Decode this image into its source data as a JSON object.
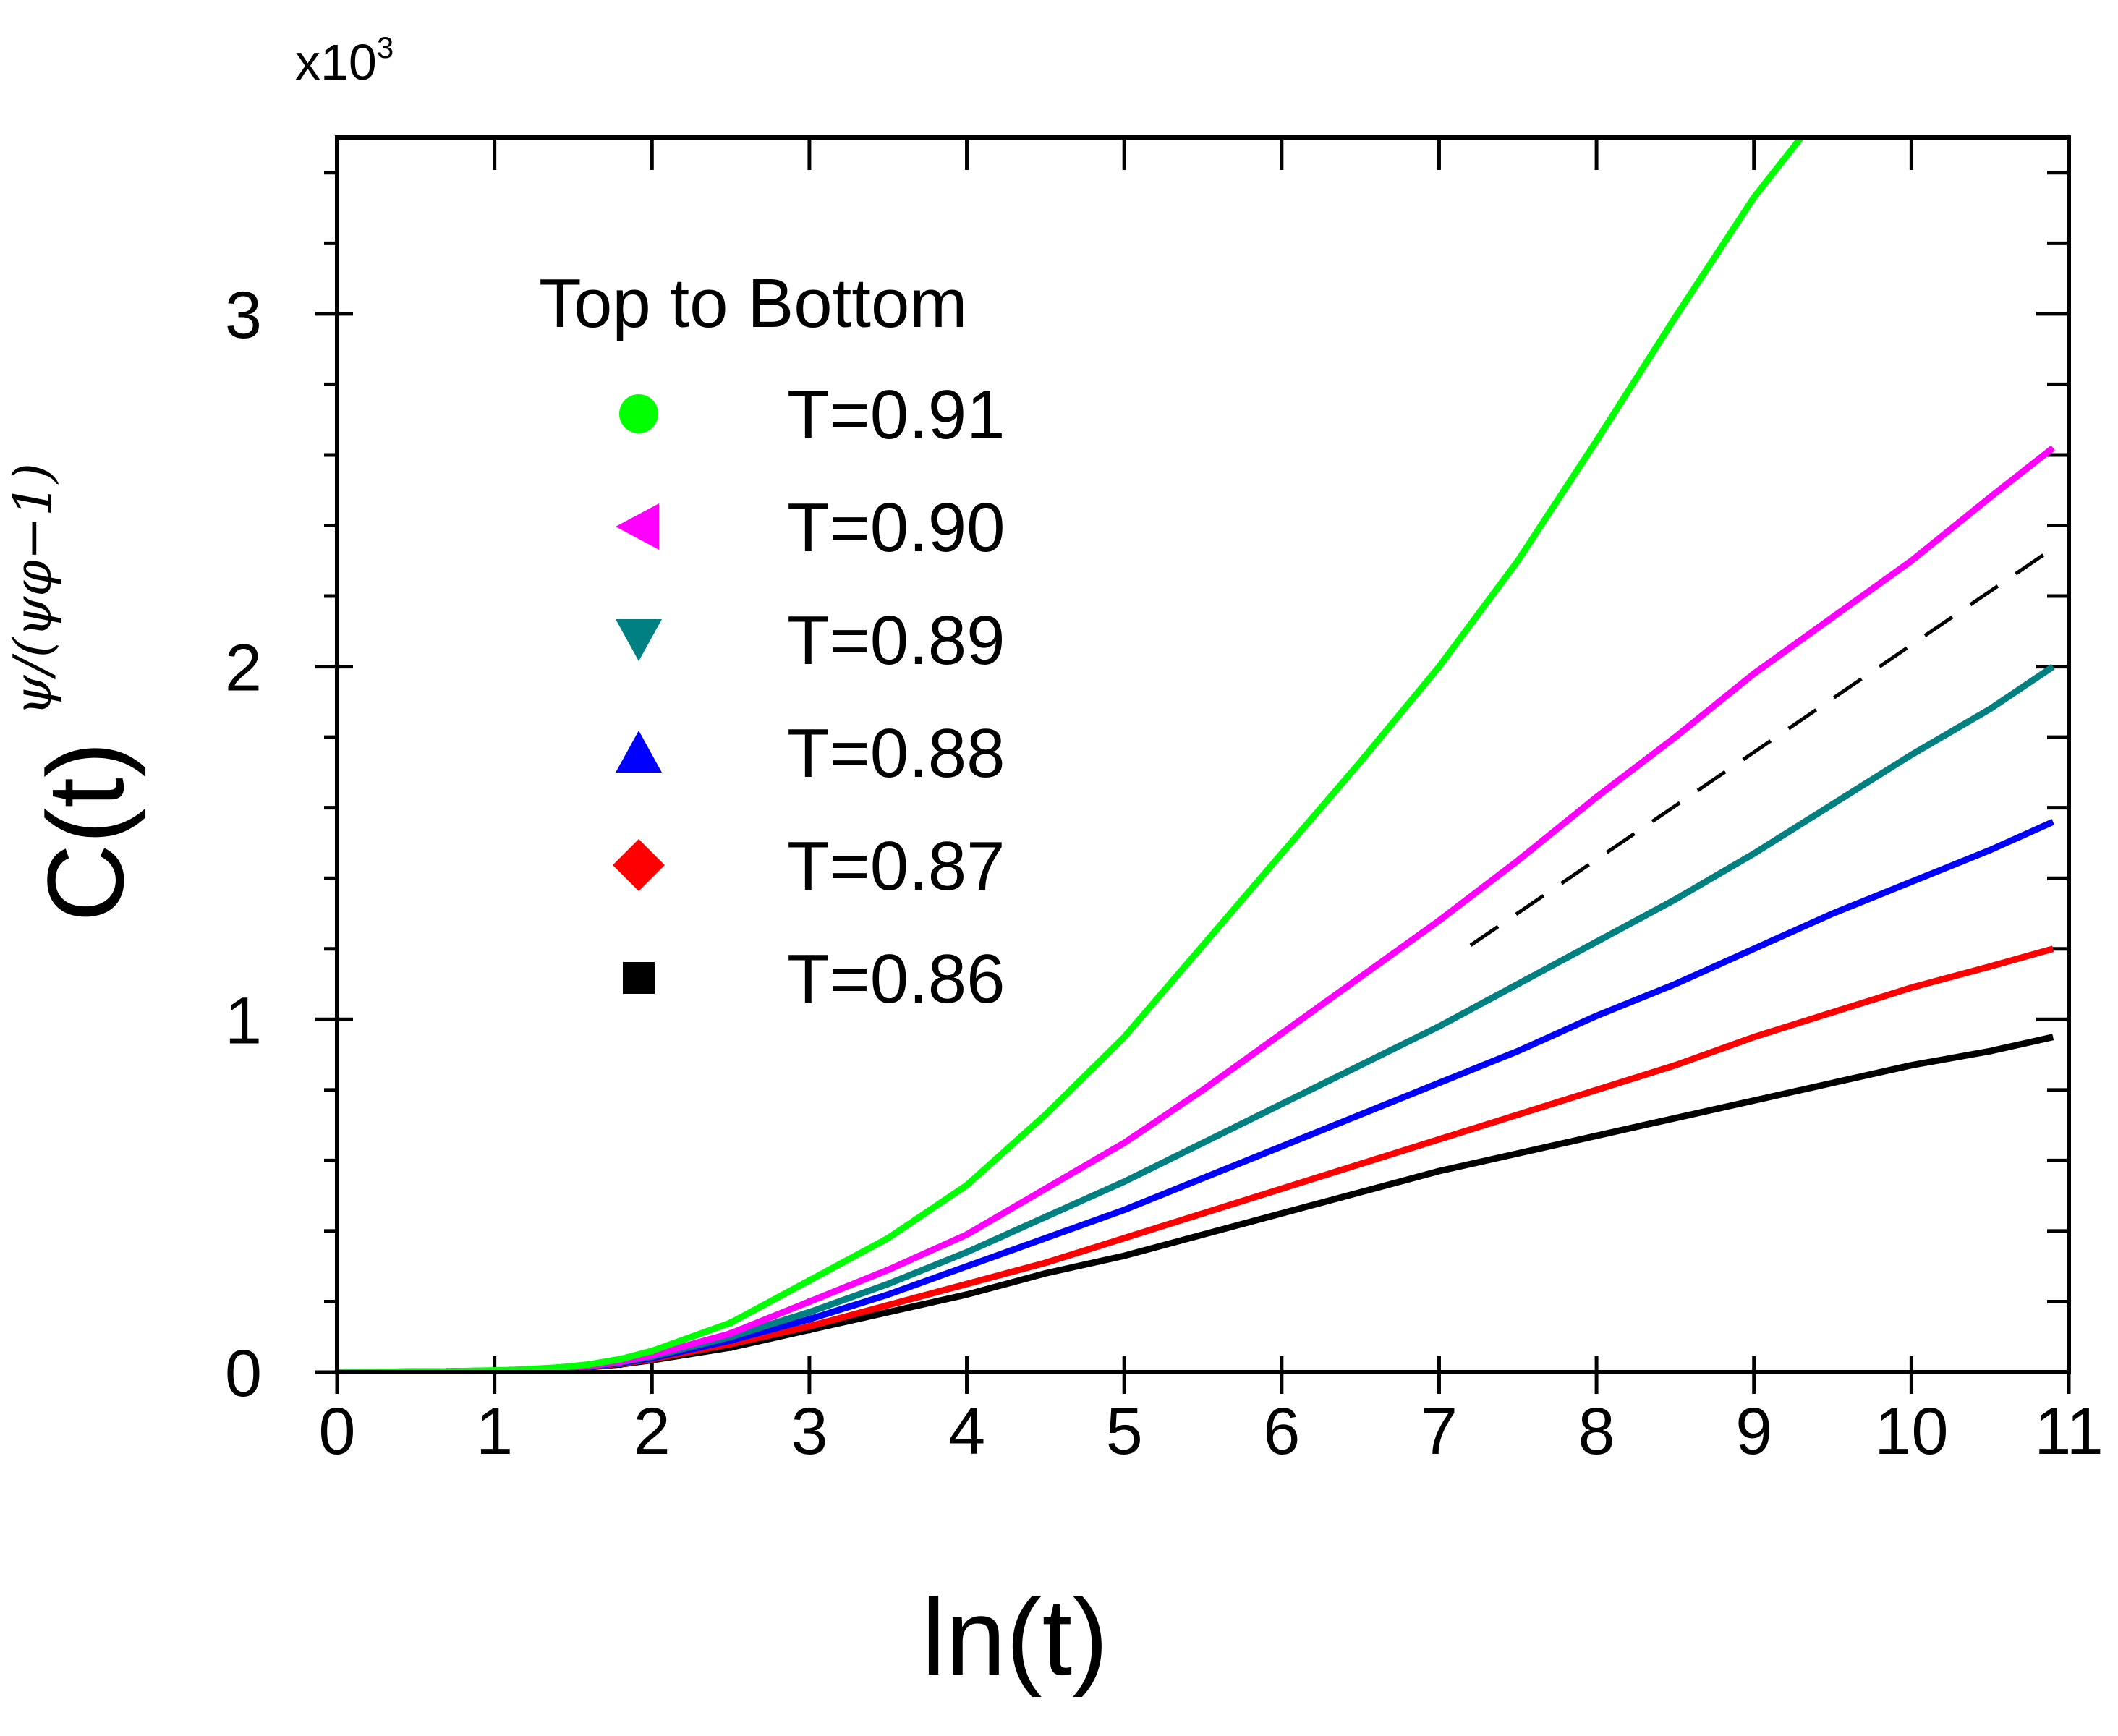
{
  "chart_data": {
    "type": "line",
    "xlabel": "ln(t)",
    "ylabel_base": "C(t)",
    "ylabel_exponent": "ψ/(ψφ−1)",
    "y_multiplier_base": "x10",
    "y_multiplier_power": "3",
    "xlim": [
      0,
      11
    ],
    "ylim": [
      0,
      3.5
    ],
    "x_ticks": [
      0,
      1,
      2,
      3,
      4,
      5,
      6,
      7,
      8,
      9,
      10,
      11
    ],
    "x_tick_labels": [
      "0",
      "1",
      "2",
      "3",
      "4",
      "5",
      "6",
      "7",
      "8",
      "9",
      "10",
      "11"
    ],
    "y_ticks": [
      0,
      1,
      2,
      3
    ],
    "y_tick_labels": [
      "0",
      "1",
      "2",
      "3"
    ],
    "legend_title": "Top to Bottom",
    "series": [
      {
        "name": "T=0.91",
        "color": "#00ff00",
        "marker": "circle",
        "x": [
          0,
          0.7,
          1.1,
          1.4,
          1.6,
          1.8,
          2,
          2.5,
          3,
          3.5,
          4,
          4.5,
          5,
          5.5,
          6,
          6.5,
          7,
          7.5,
          8,
          8.5,
          9,
          9.3
        ],
        "y": [
          0,
          0.002,
          0.006,
          0.013,
          0.022,
          0.037,
          0.06,
          0.14,
          0.26,
          0.38,
          0.53,
          0.73,
          0.95,
          1.21,
          1.47,
          1.73,
          2.0,
          2.3,
          2.64,
          2.99,
          3.33,
          3.5
        ]
      },
      {
        "name": "T=0.90",
        "color": "#ff00ff",
        "marker": "triangle-left",
        "x": [
          0,
          0.7,
          1.1,
          1.4,
          1.6,
          1.8,
          2,
          2.5,
          3,
          3.5,
          4,
          4.5,
          5,
          5.5,
          6,
          6.5,
          7,
          7.5,
          8,
          8.5,
          9,
          9.5,
          10,
          10.5,
          10.9
        ],
        "y": [
          0,
          0.002,
          0.005,
          0.011,
          0.018,
          0.03,
          0.048,
          0.11,
          0.2,
          0.29,
          0.39,
          0.52,
          0.65,
          0.8,
          0.96,
          1.12,
          1.28,
          1.45,
          1.63,
          1.8,
          1.98,
          2.14,
          2.3,
          2.48,
          2.62
        ]
      },
      {
        "name": "T=0.89",
        "color": "#008080",
        "marker": "triangle-down",
        "x": [
          0,
          0.7,
          1.1,
          1.4,
          1.6,
          1.8,
          2,
          2.5,
          3,
          3.5,
          4,
          4.5,
          5,
          5.5,
          6,
          6.5,
          7,
          7.5,
          8,
          8.5,
          9,
          9.5,
          10,
          10.5,
          10.9
        ],
        "y": [
          0,
          0.002,
          0.005,
          0.01,
          0.017,
          0.028,
          0.044,
          0.1,
          0.17,
          0.25,
          0.34,
          0.44,
          0.54,
          0.65,
          0.76,
          0.87,
          0.98,
          1.1,
          1.22,
          1.34,
          1.47,
          1.61,
          1.75,
          1.88,
          2.0
        ]
      },
      {
        "name": "T=0.88",
        "color": "#0000ff",
        "marker": "triangle-up",
        "x": [
          0,
          0.7,
          1.1,
          1.4,
          1.6,
          1.8,
          2,
          2.5,
          3,
          3.5,
          4,
          4.5,
          5,
          5.5,
          6,
          6.5,
          7,
          7.5,
          8,
          8.5,
          9,
          9.5,
          10,
          10.5,
          10.9
        ],
        "y": [
          0,
          0.002,
          0.005,
          0.01,
          0.016,
          0.026,
          0.04,
          0.09,
          0.15,
          0.22,
          0.3,
          0.38,
          0.46,
          0.55,
          0.64,
          0.73,
          0.82,
          0.91,
          1.01,
          1.1,
          1.2,
          1.3,
          1.39,
          1.48,
          1.56
        ]
      },
      {
        "name": "T=0.87",
        "color": "#ff0000",
        "marker": "diamond",
        "x": [
          0,
          0.7,
          1.1,
          1.4,
          1.6,
          1.8,
          2,
          2.5,
          3,
          3.5,
          4,
          4.5,
          5,
          5.5,
          6,
          6.5,
          7,
          7.5,
          8,
          8.5,
          9,
          9.5,
          10,
          10.5,
          10.9
        ],
        "y": [
          0,
          0.002,
          0.005,
          0.009,
          0.015,
          0.024,
          0.037,
          0.08,
          0.13,
          0.19,
          0.25,
          0.31,
          0.38,
          0.45,
          0.52,
          0.59,
          0.66,
          0.73,
          0.8,
          0.87,
          0.95,
          1.02,
          1.09,
          1.15,
          1.2
        ]
      },
      {
        "name": "T=0.86",
        "color": "#000000",
        "marker": "square",
        "x": [
          0,
          0.7,
          1.1,
          1.4,
          1.6,
          1.8,
          2,
          2.5,
          3,
          3.5,
          4,
          4.5,
          5,
          5.5,
          6,
          6.5,
          7,
          7.5,
          8,
          8.5,
          9,
          9.5,
          10,
          10.5,
          10.9
        ],
        "y": [
          0,
          0.002,
          0.005,
          0.009,
          0.014,
          0.022,
          0.034,
          0.07,
          0.12,
          0.17,
          0.22,
          0.28,
          0.33,
          0.39,
          0.45,
          0.51,
          0.57,
          0.62,
          0.67,
          0.72,
          0.77,
          0.82,
          0.87,
          0.91,
          0.95
        ]
      }
    ],
    "reference_line": {
      "style": "dashed",
      "color": "#000000",
      "x": [
        7.2,
        10.85
      ],
      "y": [
        1.21,
        2.32
      ]
    }
  }
}
